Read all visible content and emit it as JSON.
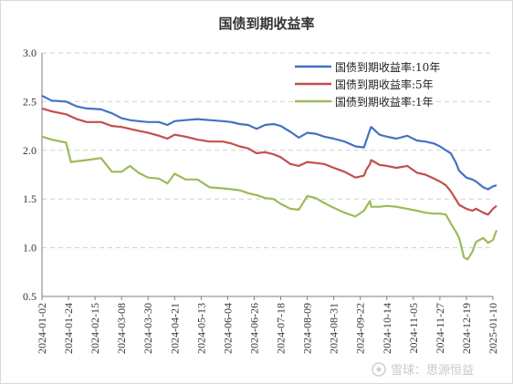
{
  "chart_data": {
    "type": "line",
    "title": "国债到期收益率",
    "xlabel": "",
    "ylabel": "",
    "ylim": [
      0.5,
      3.0
    ],
    "yticks": [
      "0.5",
      "1.0",
      "1.5",
      "2.0",
      "2.5",
      "3.0"
    ],
    "grid": "horizontal dashed",
    "legend_position": "top-right",
    "xticks": [
      "2024-01-02",
      "2024-01-24",
      "2024-02-15",
      "2024-03-08",
      "2024-03-30",
      "2024-04-21",
      "2024-05-13",
      "2024-06-04",
      "2024-06-26",
      "2024-07-18",
      "2024-08-09",
      "2024-08-31",
      "2024-09-22",
      "2024-10-14",
      "2024-11-05",
      "2024-11-27",
      "2024-12-19",
      "2025-01-10"
    ],
    "series": [
      {
        "name": "国债到期收益率:10年",
        "color": "#4472c4",
        "points": [
          [
            "2024-01-02",
            2.56
          ],
          [
            "2024-01-10",
            2.51
          ],
          [
            "2024-01-22",
            2.5
          ],
          [
            "2024-01-31",
            2.45
          ],
          [
            "2024-02-08",
            2.43
          ],
          [
            "2024-02-20",
            2.42
          ],
          [
            "2024-02-29",
            2.38
          ],
          [
            "2024-03-08",
            2.33
          ],
          [
            "2024-03-15",
            2.31
          ],
          [
            "2024-03-22",
            2.3
          ],
          [
            "2024-03-30",
            2.29
          ],
          [
            "2024-04-08",
            2.29
          ],
          [
            "2024-04-15",
            2.26
          ],
          [
            "2024-04-21",
            2.3
          ],
          [
            "2024-04-30",
            2.31
          ],
          [
            "2024-05-10",
            2.32
          ],
          [
            "2024-05-20",
            2.31
          ],
          [
            "2024-05-31",
            2.3
          ],
          [
            "2024-06-07",
            2.29
          ],
          [
            "2024-06-14",
            2.27
          ],
          [
            "2024-06-21",
            2.26
          ],
          [
            "2024-06-28",
            2.22
          ],
          [
            "2024-07-05",
            2.26
          ],
          [
            "2024-07-12",
            2.27
          ],
          [
            "2024-07-18",
            2.25
          ],
          [
            "2024-07-26",
            2.19
          ],
          [
            "2024-08-02",
            2.13
          ],
          [
            "2024-08-09",
            2.18
          ],
          [
            "2024-08-16",
            2.17
          ],
          [
            "2024-08-23",
            2.14
          ],
          [
            "2024-08-31",
            2.12
          ],
          [
            "2024-09-09",
            2.09
          ],
          [
            "2024-09-18",
            2.04
          ],
          [
            "2024-09-25",
            2.03
          ],
          [
            "2024-09-27",
            2.1
          ],
          [
            "2024-09-30",
            2.21
          ],
          [
            "2024-10-01",
            2.24
          ],
          [
            "2024-10-08",
            2.16
          ],
          [
            "2024-10-14",
            2.14
          ],
          [
            "2024-10-22",
            2.12
          ],
          [
            "2024-10-31",
            2.15
          ],
          [
            "2024-11-08",
            2.1
          ],
          [
            "2024-11-15",
            2.09
          ],
          [
            "2024-11-22",
            2.07
          ],
          [
            "2024-11-27",
            2.04
          ],
          [
            "2024-12-02",
            2.0
          ],
          [
            "2024-12-06",
            1.97
          ],
          [
            "2024-12-10",
            1.88
          ],
          [
            "2024-12-13",
            1.79
          ],
          [
            "2024-12-19",
            1.72
          ],
          [
            "2024-12-24",
            1.7
          ],
          [
            "2024-12-27",
            1.68
          ],
          [
            "2025-01-02",
            1.62
          ],
          [
            "2025-01-06",
            1.6
          ],
          [
            "2025-01-10",
            1.63
          ],
          [
            "2025-01-13",
            1.64
          ]
        ]
      },
      {
        "name": "国债到期收益率:5年",
        "color": "#c0504d",
        "points": [
          [
            "2024-01-02",
            2.43
          ],
          [
            "2024-01-10",
            2.4
          ],
          [
            "2024-01-22",
            2.37
          ],
          [
            "2024-01-31",
            2.32
          ],
          [
            "2024-02-08",
            2.29
          ],
          [
            "2024-02-20",
            2.29
          ],
          [
            "2024-02-29",
            2.25
          ],
          [
            "2024-03-08",
            2.24
          ],
          [
            "2024-03-15",
            2.22
          ],
          [
            "2024-03-22",
            2.2
          ],
          [
            "2024-03-30",
            2.18
          ],
          [
            "2024-04-08",
            2.15
          ],
          [
            "2024-04-15",
            2.12
          ],
          [
            "2024-04-21",
            2.16
          ],
          [
            "2024-04-30",
            2.14
          ],
          [
            "2024-05-10",
            2.11
          ],
          [
            "2024-05-20",
            2.09
          ],
          [
            "2024-05-31",
            2.09
          ],
          [
            "2024-06-07",
            2.07
          ],
          [
            "2024-06-14",
            2.04
          ],
          [
            "2024-06-21",
            2.02
          ],
          [
            "2024-06-28",
            1.97
          ],
          [
            "2024-07-05",
            1.98
          ],
          [
            "2024-07-12",
            1.96
          ],
          [
            "2024-07-18",
            1.93
          ],
          [
            "2024-07-26",
            1.86
          ],
          [
            "2024-08-02",
            1.84
          ],
          [
            "2024-08-09",
            1.88
          ],
          [
            "2024-08-16",
            1.87
          ],
          [
            "2024-08-23",
            1.86
          ],
          [
            "2024-08-31",
            1.82
          ],
          [
            "2024-09-09",
            1.78
          ],
          [
            "2024-09-18",
            1.72
          ],
          [
            "2024-09-25",
            1.74
          ],
          [
            "2024-09-27",
            1.8
          ],
          [
            "2024-09-30",
            1.86
          ],
          [
            "2024-10-01",
            1.9
          ],
          [
            "2024-10-08",
            1.85
          ],
          [
            "2024-10-14",
            1.84
          ],
          [
            "2024-10-22",
            1.82
          ],
          [
            "2024-10-31",
            1.84
          ],
          [
            "2024-11-08",
            1.77
          ],
          [
            "2024-11-15",
            1.75
          ],
          [
            "2024-11-22",
            1.71
          ],
          [
            "2024-11-27",
            1.68
          ],
          [
            "2024-12-02",
            1.64
          ],
          [
            "2024-12-06",
            1.58
          ],
          [
            "2024-12-10",
            1.5
          ],
          [
            "2024-12-13",
            1.44
          ],
          [
            "2024-12-19",
            1.4
          ],
          [
            "2024-12-24",
            1.38
          ],
          [
            "2024-12-27",
            1.4
          ],
          [
            "2025-01-02",
            1.36
          ],
          [
            "2025-01-06",
            1.34
          ],
          [
            "2025-01-10",
            1.4
          ],
          [
            "2025-01-13",
            1.43
          ]
        ]
      },
      {
        "name": "国债到期收益率:1年",
        "color": "#9bbb59",
        "points": [
          [
            "2024-01-02",
            2.14
          ],
          [
            "2024-01-10",
            2.11
          ],
          [
            "2024-01-22",
            2.08
          ],
          [
            "2024-01-26",
            1.88
          ],
          [
            "2024-02-08",
            1.9
          ],
          [
            "2024-02-20",
            1.92
          ],
          [
            "2024-02-29",
            1.78
          ],
          [
            "2024-03-08",
            1.78
          ],
          [
            "2024-03-15",
            1.84
          ],
          [
            "2024-03-22",
            1.77
          ],
          [
            "2024-03-30",
            1.72
          ],
          [
            "2024-04-08",
            1.71
          ],
          [
            "2024-04-15",
            1.66
          ],
          [
            "2024-04-21",
            1.76
          ],
          [
            "2024-04-30",
            1.7
          ],
          [
            "2024-05-10",
            1.7
          ],
          [
            "2024-05-20",
            1.62
          ],
          [
            "2024-05-31",
            1.61
          ],
          [
            "2024-06-07",
            1.6
          ],
          [
            "2024-06-14",
            1.59
          ],
          [
            "2024-06-21",
            1.56
          ],
          [
            "2024-06-28",
            1.54
          ],
          [
            "2024-07-05",
            1.51
          ],
          [
            "2024-07-12",
            1.5
          ],
          [
            "2024-07-18",
            1.45
          ],
          [
            "2024-07-26",
            1.4
          ],
          [
            "2024-08-02",
            1.39
          ],
          [
            "2024-08-09",
            1.53
          ],
          [
            "2024-08-16",
            1.51
          ],
          [
            "2024-08-23",
            1.46
          ],
          [
            "2024-08-31",
            1.41
          ],
          [
            "2024-09-09",
            1.36
          ],
          [
            "2024-09-18",
            1.32
          ],
          [
            "2024-09-25",
            1.38
          ],
          [
            "2024-09-27",
            1.42
          ],
          [
            "2024-09-30",
            1.48
          ],
          [
            "2024-10-01",
            1.42
          ],
          [
            "2024-10-08",
            1.42
          ],
          [
            "2024-10-14",
            1.43
          ],
          [
            "2024-10-22",
            1.42
          ],
          [
            "2024-10-31",
            1.4
          ],
          [
            "2024-11-08",
            1.38
          ],
          [
            "2024-11-15",
            1.36
          ],
          [
            "2024-11-22",
            1.35
          ],
          [
            "2024-11-27",
            1.35
          ],
          [
            "2024-12-02",
            1.34
          ],
          [
            "2024-12-06",
            1.25
          ],
          [
            "2024-12-10",
            1.17
          ],
          [
            "2024-12-13",
            1.1
          ],
          [
            "2024-12-17",
            0.9
          ],
          [
            "2024-12-20",
            0.88
          ],
          [
            "2024-12-24",
            0.96
          ],
          [
            "2024-12-27",
            1.06
          ],
          [
            "2025-01-02",
            1.1
          ],
          [
            "2025-01-06",
            1.05
          ],
          [
            "2025-01-10",
            1.08
          ],
          [
            "2025-01-13",
            1.18
          ]
        ]
      }
    ]
  },
  "watermark": "雪球：思源恒益"
}
